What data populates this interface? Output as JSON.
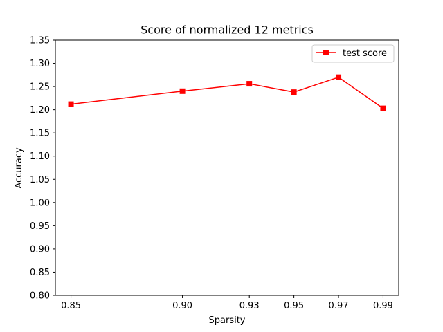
{
  "chart_data": {
    "type": "line",
    "title": "Score of normalized 12 metrics",
    "xlabel": "Sparsity",
    "ylabel": "Accuracy",
    "xlim": [
      0.843,
      0.997
    ],
    "ylim": [
      0.8,
      1.35
    ],
    "xticks": [
      0.85,
      0.9,
      0.93,
      0.95,
      0.97,
      0.99
    ],
    "xtick_labels": [
      "0.85",
      "0.90",
      "0.93",
      "0.95",
      "0.97",
      "0.99"
    ],
    "yticks": [
      0.8,
      0.85,
      0.9,
      0.95,
      1.0,
      1.05,
      1.1,
      1.15,
      1.2,
      1.25,
      1.3,
      1.35
    ],
    "ytick_labels": [
      "0.80",
      "0.85",
      "0.90",
      "0.95",
      "1.00",
      "1.05",
      "1.10",
      "1.15",
      "1.20",
      "1.25",
      "1.30",
      "1.35"
    ],
    "grid": false,
    "legend": "upper right",
    "series": [
      {
        "name": "test score",
        "color": "#ff0000",
        "marker": "square",
        "x": [
          0.85,
          0.9,
          0.93,
          0.95,
          0.97,
          0.99
        ],
        "y": [
          1.212,
          1.24,
          1.256,
          1.238,
          1.27,
          1.203
        ]
      }
    ]
  }
}
